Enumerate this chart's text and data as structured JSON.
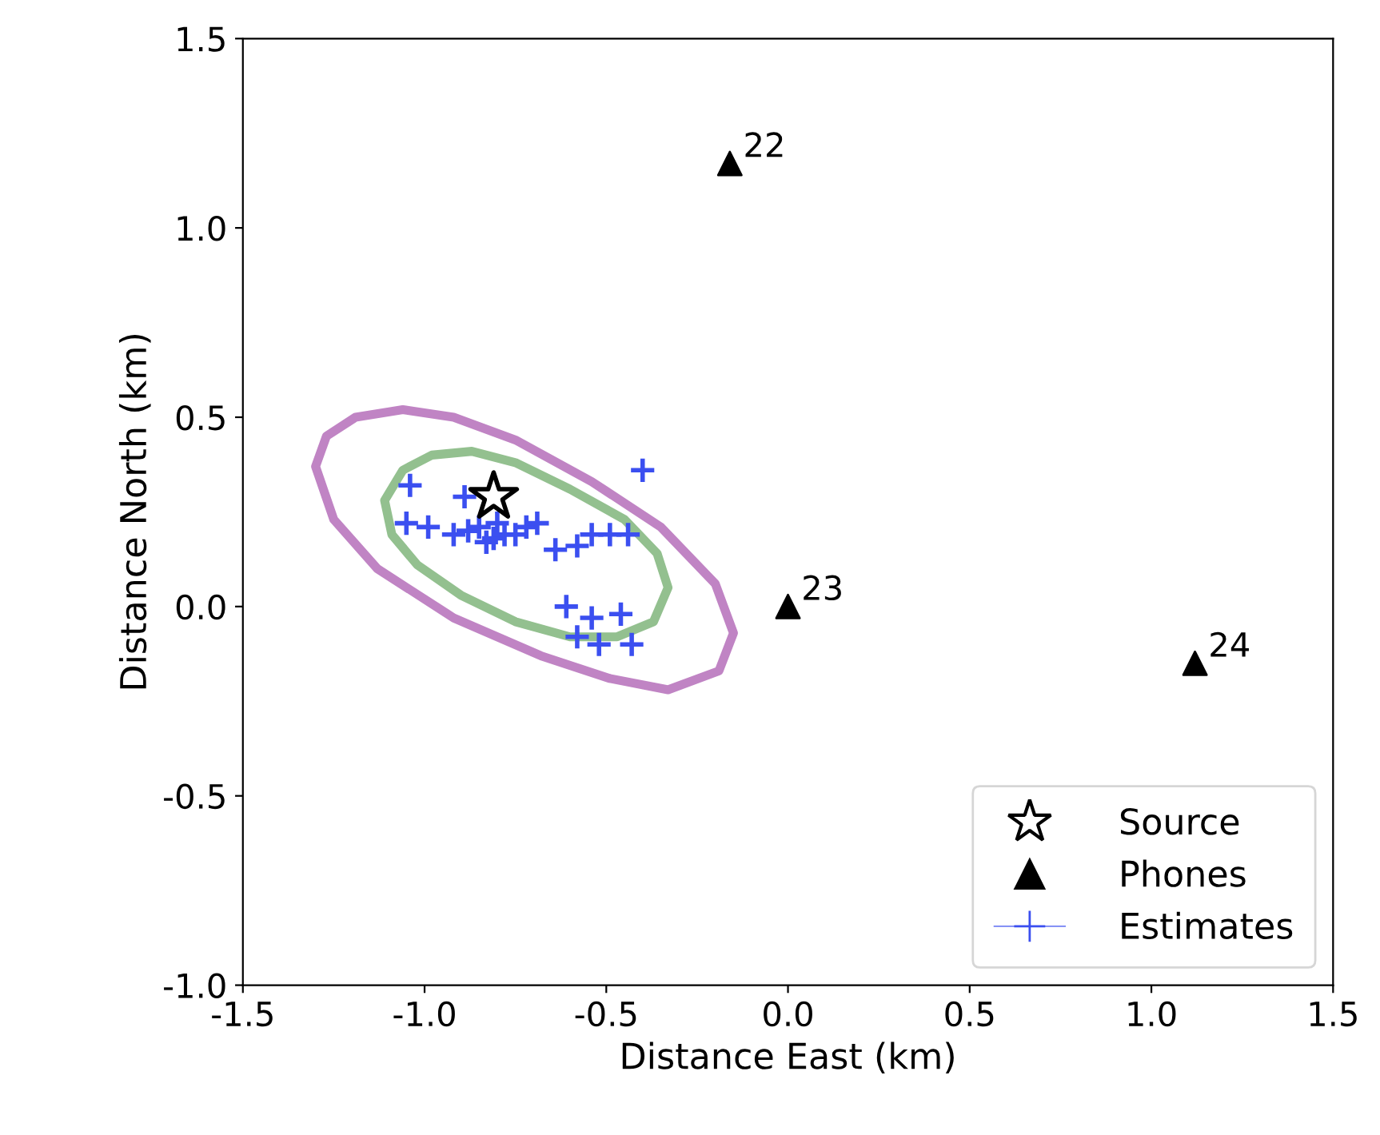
{
  "chart_data": {
    "type": "scatter",
    "xlabel": "Distance East (km)",
    "ylabel": "Distance North (km)",
    "xlim": [
      -1.5,
      1.5
    ],
    "ylim": [
      -1.0,
      1.5
    ],
    "xticks": [
      {
        "value": -1.5,
        "label": "-1.5"
      },
      {
        "value": -1.0,
        "label": "-1.0"
      },
      {
        "value": -0.5,
        "label": "-0.5"
      },
      {
        "value": 0.0,
        "label": "0.0"
      },
      {
        "value": 0.5,
        "label": "0.5"
      },
      {
        "value": 1.0,
        "label": "1.0"
      },
      {
        "value": 1.5,
        "label": "1.5"
      }
    ],
    "yticks": [
      {
        "value": -1.0,
        "label": "-1.0"
      },
      {
        "value": -0.5,
        "label": "-0.5"
      },
      {
        "value": 0.0,
        "label": "0.0"
      },
      {
        "value": 0.5,
        "label": "0.5"
      },
      {
        "value": 1.0,
        "label": "1.0"
      },
      {
        "value": 1.5,
        "label": "1.5"
      }
    ],
    "grid": false,
    "legend": "bottom right",
    "series": [
      {
        "type": "scatter",
        "name": "Estimates",
        "color": "#3b4ff0",
        "marker": "cross",
        "x": [
          -1.04,
          -0.89,
          -1.05,
          -0.99,
          -0.92,
          -0.88,
          -0.85,
          -0.83,
          -0.81,
          -0.8,
          -0.78,
          -0.75,
          -0.72,
          -0.69,
          -0.64,
          -0.58,
          -0.54,
          -0.49,
          -0.44,
          -0.4,
          -0.61,
          -0.54,
          -0.46,
          -0.58,
          -0.52,
          -0.43
        ],
        "values": [
          0.32,
          0.29,
          0.22,
          0.21,
          0.19,
          0.2,
          0.21,
          0.17,
          0.18,
          0.22,
          0.19,
          0.19,
          0.21,
          0.22,
          0.15,
          0.16,
          0.19,
          0.19,
          0.19,
          0.36,
          0.0,
          -0.03,
          -0.02,
          -0.08,
          -0.1,
          -0.1
        ]
      },
      {
        "type": "scatter",
        "name": "Source",
        "color": "#000000",
        "marker": "star",
        "x": [
          -0.81
        ],
        "values": [
          0.29
        ]
      },
      {
        "type": "scatter",
        "name": "Phones",
        "color": "#000000",
        "marker": "triangle",
        "x": [
          -0.16,
          0.0,
          1.12
        ],
        "values": [
          1.17,
          0.0,
          -0.15
        ]
      }
    ],
    "annotations": [
      {
        "text": "22",
        "x": -0.16,
        "y": 1.17
      },
      {
        "text": "23",
        "x": 0.0,
        "y": 0.0
      },
      {
        "text": "24",
        "x": 1.12,
        "y": -0.15
      }
    ]
  }
}
